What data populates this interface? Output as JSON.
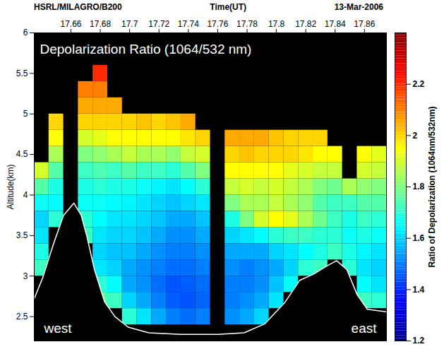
{
  "chart_data": {
    "type": "heatmap",
    "title": "Depolarization Ratio (1064/532 nm)",
    "source": "HSRL/MILAGRO/B200",
    "date": "13-Mar-2006",
    "x_label": "Time(UT)",
    "y_label": "Altitude(km)",
    "annotations": [
      "west",
      "east"
    ],
    "xlim": [
      17.635,
      17.875
    ],
    "xticks": [
      17.66,
      17.68,
      17.7,
      17.72,
      17.74,
      17.76,
      17.78,
      17.8,
      17.82,
      17.84,
      17.86
    ],
    "ylim": [
      2.2,
      6
    ],
    "yticks": [
      2.5,
      3,
      3.5,
      4,
      4.5,
      5,
      5.5,
      6
    ],
    "x": [
      17.64,
      17.65,
      17.66,
      17.67,
      17.68,
      17.69,
      17.7,
      17.71,
      17.72,
      17.73,
      17.74,
      17.75,
      17.76,
      17.77,
      17.78,
      17.79,
      17.8,
      17.81,
      17.82,
      17.83,
      17.84,
      17.85,
      17.86,
      17.87
    ],
    "y": [
      2.3,
      2.5,
      2.7,
      2.9,
      3.1,
      3.3,
      3.5,
      3.7,
      3.9,
      4.1,
      4.3,
      4.5,
      4.7,
      4.9,
      5.1,
      5.3,
      5.5,
      5.7,
      5.9
    ],
    "cells": [
      [
        null,
        null,
        null,
        null,
        null,
        null,
        null,
        null,
        null,
        null,
        null,
        null,
        null,
        null,
        null,
        null,
        null,
        null,
        null,
        null,
        null,
        null,
        null,
        null
      ],
      [
        null,
        null,
        null,
        null,
        null,
        null,
        1.7,
        1.62,
        1.55,
        1.5,
        1.48,
        1.5,
        null,
        1.52,
        1.55,
        1.6,
        null,
        null,
        null,
        null,
        null,
        null,
        null,
        null
      ],
      [
        null,
        null,
        null,
        null,
        1.75,
        1.72,
        1.6,
        1.55,
        1.5,
        1.46,
        1.45,
        1.47,
        null,
        1.5,
        1.52,
        1.55,
        1.62,
        null,
        null,
        null,
        null,
        null,
        1.72,
        1.7
      ],
      [
        null,
        null,
        null,
        null,
        1.7,
        1.65,
        1.55,
        1.52,
        1.48,
        1.45,
        1.46,
        1.48,
        null,
        1.5,
        1.5,
        1.52,
        1.58,
        1.65,
        null,
        null,
        null,
        null,
        1.65,
        1.62
      ],
      [
        1.72,
        null,
        null,
        null,
        1.62,
        1.6,
        1.55,
        1.52,
        1.5,
        1.48,
        1.48,
        1.5,
        null,
        1.52,
        1.5,
        1.52,
        1.55,
        1.6,
        1.7,
        1.72,
        null,
        1.7,
        1.62,
        1.6
      ],
      [
        1.68,
        null,
        null,
        null,
        1.6,
        1.58,
        1.58,
        1.55,
        1.52,
        1.5,
        1.5,
        1.52,
        null,
        1.55,
        1.55,
        1.55,
        1.6,
        1.62,
        1.65,
        1.68,
        1.72,
        1.68,
        1.64,
        1.62
      ],
      [
        1.62,
        null,
        null,
        1.72,
        1.62,
        1.6,
        1.6,
        1.58,
        1.55,
        1.52,
        1.52,
        1.55,
        null,
        1.6,
        1.62,
        1.65,
        1.7,
        1.72,
        1.72,
        1.7,
        1.7,
        1.66,
        1.68,
        1.66
      ],
      [
        1.6,
        1.7,
        null,
        1.7,
        1.65,
        1.62,
        1.62,
        1.6,
        1.58,
        1.55,
        1.55,
        1.58,
        null,
        1.68,
        1.8,
        1.9,
        1.95,
        1.92,
        1.85,
        1.78,
        1.72,
        1.68,
        1.72,
        1.7
      ],
      [
        1.66,
        1.65,
        null,
        1.66,
        1.66,
        1.65,
        1.64,
        1.62,
        1.6,
        1.58,
        1.6,
        1.62,
        null,
        1.8,
        1.85,
        1.85,
        1.88,
        1.85,
        1.82,
        1.75,
        1.72,
        1.72,
        1.75,
        1.75
      ],
      [
        1.75,
        1.68,
        null,
        1.68,
        1.7,
        1.68,
        1.68,
        1.66,
        1.64,
        1.62,
        1.65,
        1.7,
        null,
        1.88,
        1.9,
        1.88,
        1.9,
        1.88,
        1.85,
        1.8,
        1.78,
        1.85,
        1.82,
        1.8
      ],
      [
        1.9,
        1.75,
        null,
        1.72,
        1.74,
        1.72,
        1.75,
        1.72,
        1.72,
        1.7,
        1.75,
        1.8,
        null,
        1.95,
        1.95,
        1.95,
        1.95,
        1.92,
        1.9,
        1.88,
        1.88,
        null,
        1.9,
        1.88
      ],
      [
        null,
        1.85,
        null,
        1.8,
        1.82,
        1.85,
        1.88,
        1.85,
        1.85,
        1.82,
        1.88,
        1.9,
        null,
        2.0,
        2.02,
        2.0,
        2.0,
        2.0,
        1.98,
        1.95,
        1.95,
        null,
        1.95,
        1.92
      ],
      [
        null,
        1.95,
        null,
        1.9,
        1.92,
        1.95,
        1.95,
        1.95,
        1.95,
        1.95,
        1.98,
        2.0,
        null,
        2.05,
        2.05,
        2.05,
        2.02,
        2.0,
        2.0,
        2.0,
        null,
        null,
        null,
        null
      ],
      [
        null,
        2.0,
        null,
        2.0,
        2.0,
        2.0,
        2.0,
        2.02,
        2.0,
        2.02,
        2.05,
        null,
        null,
        null,
        null,
        null,
        null,
        null,
        null,
        null,
        null,
        null,
        null,
        null
      ],
      [
        null,
        null,
        null,
        2.05,
        2.05,
        2.05,
        null,
        null,
        null,
        null,
        null,
        null,
        null,
        null,
        null,
        null,
        null,
        null,
        null,
        null,
        null,
        null,
        null,
        null
      ],
      [
        null,
        null,
        null,
        2.1,
        2.1,
        null,
        null,
        null,
        null,
        null,
        null,
        null,
        null,
        null,
        null,
        null,
        null,
        null,
        null,
        null,
        null,
        null,
        null,
        null
      ],
      [
        null,
        null,
        null,
        null,
        2.2,
        null,
        null,
        null,
        null,
        null,
        null,
        null,
        null,
        null,
        null,
        null,
        null,
        null,
        null,
        null,
        null,
        null,
        null,
        null
      ],
      [
        null,
        null,
        null,
        null,
        null,
        null,
        null,
        null,
        null,
        null,
        null,
        null,
        null,
        null,
        null,
        null,
        null,
        null,
        null,
        null,
        null,
        null,
        null,
        null
      ],
      [
        null,
        null,
        null,
        null,
        null,
        null,
        null,
        null,
        null,
        null,
        null,
        null,
        null,
        null,
        null,
        null,
        null,
        null,
        null,
        null,
        null,
        null,
        null,
        null
      ]
    ],
    "terrain": {
      "x": [
        17.635,
        17.641,
        17.648,
        17.655,
        17.662,
        17.667,
        17.671,
        17.676,
        17.683,
        17.69,
        17.699,
        17.713,
        17.736,
        17.76,
        17.778,
        17.792,
        17.806,
        17.816,
        17.825,
        17.834,
        17.841,
        17.848,
        17.855,
        17.862,
        17.875
      ],
      "values": [
        2.72,
        2.99,
        3.39,
        3.75,
        3.9,
        3.75,
        3.48,
        3.08,
        2.68,
        2.5,
        2.37,
        2.3,
        2.28,
        2.28,
        2.3,
        2.41,
        2.68,
        2.95,
        3.02,
        3.12,
        3.19,
        3.08,
        2.77,
        2.59,
        2.56
      ]
    },
    "colorbar": {
      "label": "Ratio of Depolarization (1064nm/532nm)",
      "range": [
        1.2,
        2.4
      ],
      "ticks": [
        1.2,
        1.4,
        1.6,
        1.8,
        2,
        2.2
      ]
    }
  }
}
